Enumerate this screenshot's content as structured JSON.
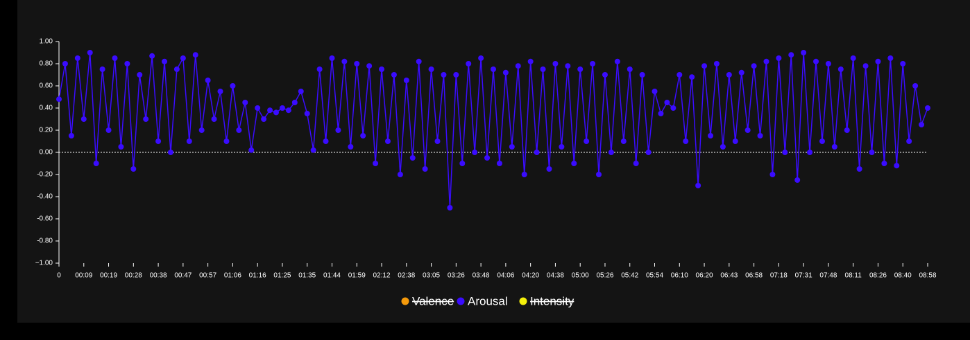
{
  "chart_data": {
    "type": "line",
    "categories": [
      "0",
      null,
      null,
      null,
      "00:09",
      null,
      null,
      null,
      "00:19",
      null,
      null,
      null,
      "00:28",
      null,
      null,
      null,
      "00:38",
      null,
      null,
      null,
      "00:47",
      null,
      null,
      null,
      "00:57",
      null,
      null,
      null,
      "01:06",
      null,
      null,
      null,
      "01:16",
      null,
      null,
      null,
      "01:25",
      null,
      null,
      null,
      "01:35",
      null,
      null,
      null,
      "01:44",
      null,
      null,
      null,
      "01:59",
      null,
      null,
      null,
      "02:12",
      null,
      null,
      null,
      "02:38",
      null,
      null,
      null,
      "03:05",
      null,
      null,
      null,
      "03:26",
      null,
      null,
      null,
      "03:48",
      null,
      null,
      null,
      "04:06",
      null,
      null,
      null,
      "04:20",
      null,
      null,
      null,
      "04:38",
      null,
      null,
      null,
      "05:00",
      null,
      null,
      null,
      "05:26",
      null,
      null,
      null,
      "05:42",
      null,
      null,
      null,
      "05:54",
      null,
      null,
      null,
      "06:10",
      null,
      null,
      null,
      "06:20",
      null,
      null,
      null,
      "06:43",
      null,
      null,
      null,
      "06:58",
      null,
      null,
      null,
      "07:18",
      null,
      null,
      null,
      "07:31",
      null,
      null,
      null,
      "07:48",
      null,
      null,
      null,
      "08:11",
      null,
      null,
      null,
      "08:26",
      null,
      null,
      null,
      "08:40",
      null,
      null,
      null,
      "08:58"
    ],
    "series": [
      {
        "name": "Arousal",
        "color": "#3a0cff",
        "values": [
          0.48,
          0.8,
          0.15,
          0.85,
          0.3,
          0.9,
          -0.1,
          0.75,
          0.2,
          0.85,
          0.05,
          0.8,
          -0.15,
          0.7,
          0.3,
          0.87,
          0.1,
          0.82,
          0.0,
          0.75,
          0.85,
          0.1,
          0.88,
          0.2,
          0.65,
          0.3,
          0.55,
          0.1,
          0.6,
          0.2,
          0.45,
          0.02,
          0.4,
          0.3,
          0.38,
          0.36,
          0.4,
          0.38,
          0.45,
          0.55,
          0.35,
          0.02,
          0.75,
          0.1,
          0.85,
          0.2,
          0.82,
          0.05,
          0.8,
          0.15,
          0.78,
          -0.1,
          0.75,
          0.1,
          0.7,
          -0.2,
          0.65,
          -0.05,
          0.82,
          -0.15,
          0.75,
          0.1,
          0.7,
          -0.5,
          0.7,
          -0.1,
          0.8,
          0.0,
          0.85,
          -0.05,
          0.75,
          -0.1,
          0.72,
          0.05,
          0.78,
          -0.2,
          0.82,
          0.0,
          0.75,
          -0.15,
          0.8,
          0.05,
          0.78,
          -0.1,
          0.75,
          0.1,
          0.8,
          -0.2,
          0.7,
          0.0,
          0.82,
          0.1,
          0.75,
          -0.1,
          0.7,
          0.0,
          0.55,
          0.35,
          0.45,
          0.4,
          0.7,
          0.1,
          0.68,
          -0.3,
          0.78,
          0.15,
          0.8,
          0.05,
          0.7,
          0.1,
          0.72,
          0.2,
          0.78,
          0.15,
          0.82,
          -0.2,
          0.85,
          0.0,
          0.88,
          -0.25,
          0.9,
          0.0,
          0.82,
          0.1,
          0.8,
          0.05,
          0.75,
          0.2,
          0.85,
          -0.15,
          0.78,
          0.0,
          0.82,
          -0.1,
          0.85,
          -0.12,
          0.8,
          0.1,
          0.6,
          0.25,
          0.4
        ]
      }
    ],
    "legend": [
      {
        "name": "Valence",
        "color": "#f59a0b",
        "hidden": true
      },
      {
        "name": "Arousal",
        "color": "#3a0cff",
        "hidden": false
      },
      {
        "name": "Intensity",
        "color": "#f5f00b",
        "hidden": true
      }
    ],
    "ylim": [
      -1,
      1
    ],
    "yticks": [
      {
        "value": -1,
        "label": "−1.00"
      },
      {
        "value": -0.8,
        "label": "-0.80"
      },
      {
        "value": -0.6,
        "label": "-0.60"
      },
      {
        "value": -0.4,
        "label": "-0.40"
      },
      {
        "value": -0.2,
        "label": "-0.20"
      },
      {
        "value": 0,
        "label": "0.00"
      },
      {
        "value": 0.2,
        "label": "0.20"
      },
      {
        "value": 0.4,
        "label": "0.40"
      },
      {
        "value": 0.6,
        "label": "0.60"
      },
      {
        "value": 0.8,
        "label": "0.80"
      },
      {
        "value": 1,
        "label": "1.00"
      }
    ],
    "reference_line": 0
  }
}
